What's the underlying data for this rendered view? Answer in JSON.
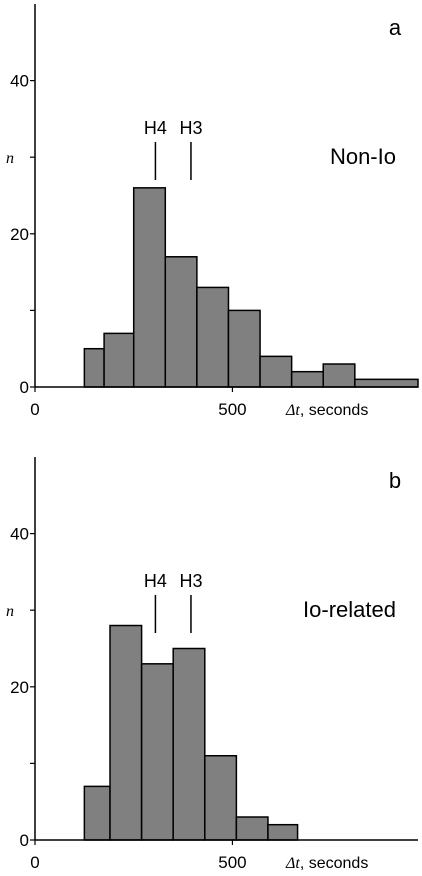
{
  "chart_data": [
    {
      "type": "bar",
      "panel_label": "a",
      "title": "Non-Io",
      "bins": [
        {
          "x0": 125,
          "x1": 175,
          "y": 5
        },
        {
          "x0": 175,
          "x1": 250,
          "y": 7
        },
        {
          "x0": 250,
          "x1": 330,
          "y": 26
        },
        {
          "x0": 330,
          "x1": 410,
          "y": 17
        },
        {
          "x0": 410,
          "x1": 490,
          "y": 13
        },
        {
          "x0": 490,
          "x1": 570,
          "y": 10
        },
        {
          "x0": 570,
          "x1": 650,
          "y": 4
        },
        {
          "x0": 650,
          "x1": 730,
          "y": 2
        },
        {
          "x0": 730,
          "x1": 810,
          "y": 3
        },
        {
          "x0": 810,
          "x1": 970,
          "y": 1
        }
      ],
      "bar_color": "#808080",
      "markers": [
        {
          "label": "H4",
          "x": 305
        },
        {
          "label": "H3",
          "x": 395
        }
      ],
      "xlim": [
        0,
        970
      ],
      "ylim": [
        0,
        50
      ],
      "xticks": [
        0,
        500
      ],
      "yticks": [
        0,
        20,
        40
      ],
      "yminor_ticks": [
        10,
        30
      ],
      "ylabel": "n",
      "xlabel_symbol": "Δt",
      "xlabel_unit": ", seconds"
    },
    {
      "type": "bar",
      "panel_label": "b",
      "title": "Io-related",
      "bins": [
        {
          "x0": 125,
          "x1": 190,
          "y": 7
        },
        {
          "x0": 190,
          "x1": 270,
          "y": 28
        },
        {
          "x0": 270,
          "x1": 350,
          "y": 23
        },
        {
          "x0": 350,
          "x1": 430,
          "y": 25
        },
        {
          "x0": 430,
          "x1": 510,
          "y": 11
        },
        {
          "x0": 510,
          "x1": 590,
          "y": 3
        },
        {
          "x0": 590,
          "x1": 665,
          "y": 2
        }
      ],
      "bar_color": "#808080",
      "markers": [
        {
          "label": "H4",
          "x": 305
        },
        {
          "label": "H3",
          "x": 395
        }
      ],
      "xlim": [
        0,
        970
      ],
      "ylim": [
        0,
        50
      ],
      "xticks": [
        0,
        500
      ],
      "yticks": [
        0,
        20,
        40
      ],
      "yminor_ticks": [
        10,
        30
      ],
      "ylabel": "n",
      "xlabel_symbol": "Δt",
      "xlabel_unit": ", seconds"
    }
  ]
}
